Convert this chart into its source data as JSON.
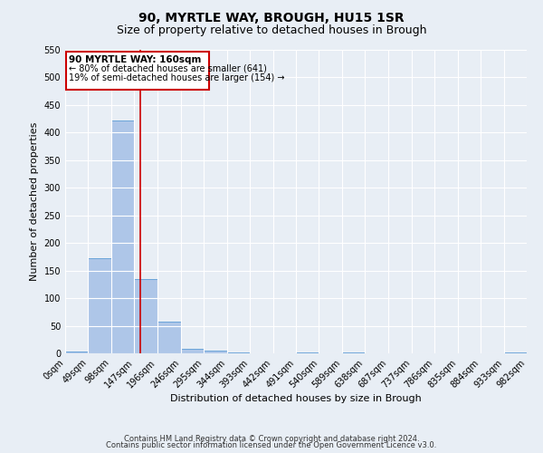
{
  "title": "90, MYRTLE WAY, BROUGH, HU15 1SR",
  "subtitle": "Size of property relative to detached houses in Brough",
  "xlabel": "Distribution of detached houses by size in Brough",
  "ylabel": "Number of detached properties",
  "footer_line1": "Contains HM Land Registry data © Crown copyright and database right 2024.",
  "footer_line2": "Contains public sector information licensed under the Open Government Licence v3.0.",
  "bin_edges": [
    0,
    49,
    98,
    147,
    196,
    246,
    295,
    344,
    393,
    442,
    491,
    540,
    589,
    638,
    687,
    737,
    786,
    835,
    884,
    933,
    982
  ],
  "bin_labels": [
    "0sqm",
    "49sqm",
    "98sqm",
    "147sqm",
    "196sqm",
    "246sqm",
    "295sqm",
    "344sqm",
    "393sqm",
    "442sqm",
    "491sqm",
    "540sqm",
    "589sqm",
    "638sqm",
    "687sqm",
    "737sqm",
    "786sqm",
    "835sqm",
    "884sqm",
    "933sqm",
    "982sqm"
  ],
  "bar_heights": [
    3,
    173,
    422,
    135,
    57,
    8,
    5,
    2,
    0,
    0,
    2,
    0,
    2,
    0,
    0,
    0,
    0,
    0,
    0,
    2
  ],
  "bar_color": "#aec6e8",
  "bar_edge_color": "#5b9bd5",
  "property_line_x": 160,
  "property_line_color": "#cc0000",
  "annotation_title": "90 MYRTLE WAY: 160sqm",
  "annotation_line1": "← 80% of detached houses are smaller (641)",
  "annotation_line2": "19% of semi-detached houses are larger (154) →",
  "annotation_box_color": "#cc0000",
  "ylim": [
    0,
    550
  ],
  "yticks": [
    0,
    50,
    100,
    150,
    200,
    250,
    300,
    350,
    400,
    450,
    500,
    550
  ],
  "bg_color": "#e8eef5",
  "grid_color": "#ffffff",
  "title_fontsize": 10,
  "subtitle_fontsize": 9,
  "axis_label_fontsize": 8,
  "tick_fontsize": 7,
  "footer_fontsize": 6
}
